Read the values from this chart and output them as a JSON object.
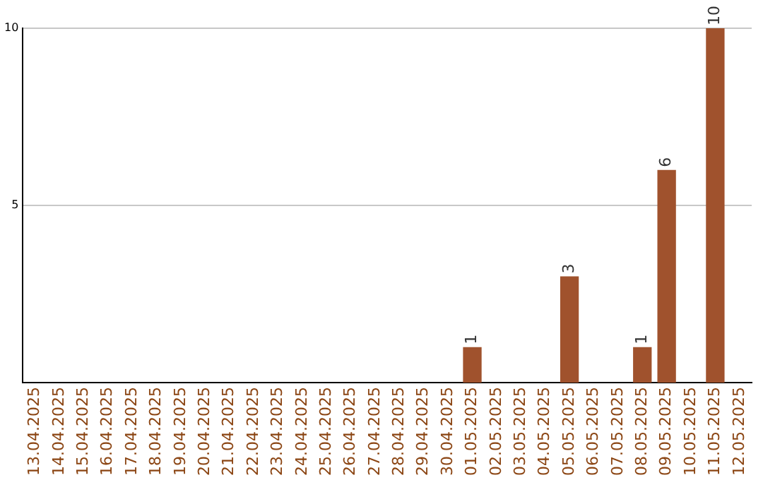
{
  "chart_data": {
    "type": "bar",
    "categories": [
      "13.04.2025",
      "14.04.2025",
      "15.04.2025",
      "16.04.2025",
      "17.04.2025",
      "18.04.2025",
      "19.04.2025",
      "20.04.2025",
      "21.04.2025",
      "22.04.2025",
      "23.04.2025",
      "24.04.2025",
      "25.04.2025",
      "26.04.2025",
      "27.04.2025",
      "28.04.2025",
      "29.04.2025",
      "30.04.2025",
      "01.05.2025",
      "02.05.2025",
      "03.05.2025",
      "04.05.2025",
      "05.05.2025",
      "06.05.2025",
      "07.05.2025",
      "08.05.2025",
      "09.05.2025",
      "10.05.2025",
      "11.05.2025",
      "12.05.2025"
    ],
    "values": [
      0,
      0,
      0,
      0,
      0,
      0,
      0,
      0,
      0,
      0,
      0,
      0,
      0,
      0,
      0,
      0,
      0,
      0,
      1,
      0,
      0,
      0,
      3,
      0,
      0,
      1,
      6,
      0,
      10,
      0
    ],
    "value_labels": [
      null,
      null,
      null,
      null,
      null,
      null,
      null,
      null,
      null,
      null,
      null,
      null,
      null,
      null,
      null,
      null,
      null,
      null,
      "1",
      null,
      null,
      null,
      "3",
      null,
      null,
      "1",
      "6",
      null,
      "10",
      null
    ],
    "color": "#a0522d",
    "ylim": [
      0,
      10
    ],
    "yticks": [
      5,
      10
    ],
    "grid": "y",
    "legend": false
  }
}
